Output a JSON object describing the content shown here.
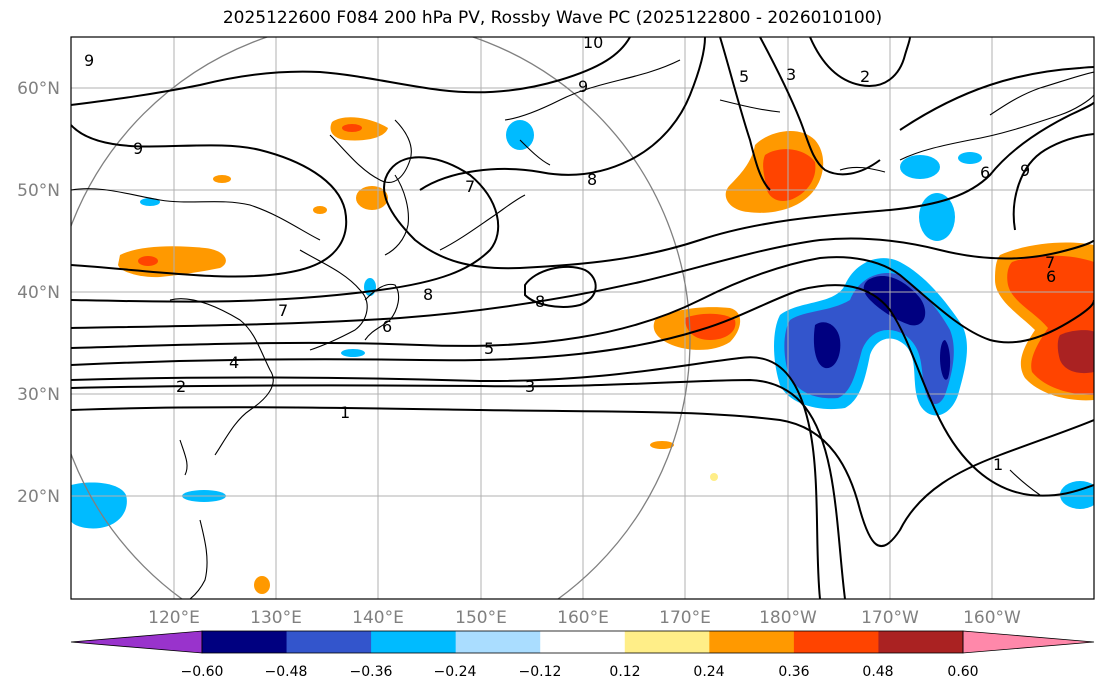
{
  "title": "2025122600 F084 200 hPa PV, Rossby Wave PC (2025122800 - 2026010100)",
  "lat_labels": [
    "60°N",
    "50°N",
    "40°N",
    "30°N",
    "20°N"
  ],
  "lon_labels": [
    "120°E",
    "130°E",
    "140°E",
    "150°E",
    "160°E",
    "170°E",
    "180°W",
    "170°W",
    "160°W"
  ],
  "colorbar": {
    "colors": [
      "#9933cc",
      "#000080",
      "#3355cc",
      "#00bbff",
      "#aaddff",
      "#ffffff",
      "#ffee88",
      "#ff9900",
      "#ff4400",
      "#aa2222",
      "#ff88aa"
    ],
    "tick_labels": [
      "−0.60",
      "−0.48",
      "−0.36",
      "−0.24",
      "−0.12",
      "0.12",
      "0.24",
      "0.36",
      "0.48",
      "0.60"
    ]
  },
  "contour_labels": [
    "10",
    "9",
    "9",
    "9",
    "8",
    "8",
    "7",
    "7",
    "6",
    "6",
    "5",
    "5",
    "4",
    "3",
    "3",
    "2",
    "2",
    "1",
    "1",
    "9",
    "7",
    "6",
    "8"
  ]
}
